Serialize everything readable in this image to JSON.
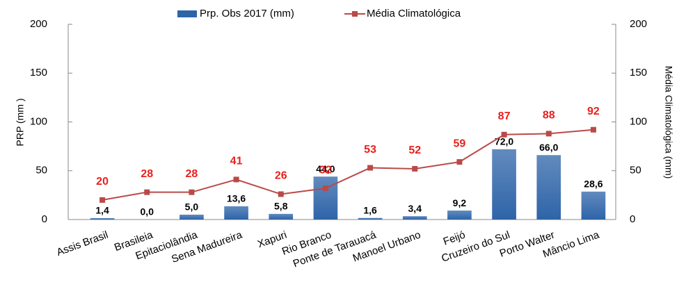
{
  "chart_data": {
    "type": "combo",
    "categories": [
      "Assis Brasil",
      "Brasileia",
      "Epitaciolândia",
      "Sena Madureira",
      "Xapuri",
      "Rio Branco",
      "Ponte de Tarauacá",
      "Manoel Urbano",
      "Feijó",
      "Cruzeiro do Sul",
      "Porto Walter",
      "Mâncio Lima"
    ],
    "series": [
      {
        "name": "Prp. Obs 2017 (mm)",
        "type": "bar",
        "color": "#2e64a8",
        "values": [
          1.4,
          0.0,
          5.0,
          13.6,
          5.8,
          44.0,
          1.6,
          3.4,
          9.2,
          72.0,
          66.0,
          28.6
        ],
        "value_labels": [
          "1,4",
          "0,0",
          "5,0",
          "13,6",
          "5,8",
          "44,0",
          "1,6",
          "3,4",
          "9,2",
          "72,0",
          "66,0",
          "28,6"
        ]
      },
      {
        "name": "Média Climatológica",
        "type": "line",
        "color": "#b94a48",
        "axis": "y2",
        "values": [
          20,
          28,
          28,
          41,
          26,
          32,
          53,
          52,
          59,
          87,
          88,
          92
        ]
      }
    ],
    "y_label": "PRP (mm )",
    "y2_label": "Média Climatológica  (mm)",
    "ylim": [
      0,
      200
    ],
    "yticks": [
      0,
      50,
      100,
      150,
      200
    ],
    "y2lim": [
      0,
      200
    ],
    "y2ticks": [
      0,
      50,
      100,
      150,
      200
    ]
  }
}
